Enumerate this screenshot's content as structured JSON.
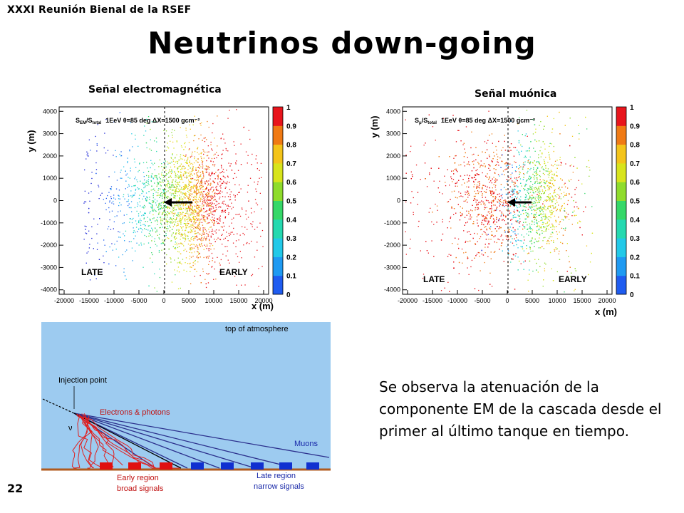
{
  "header": {
    "conference": "XXXI Reunión Bienal de la RSEF",
    "title": "Neutrinos down-going"
  },
  "plots": [
    {
      "id": "em",
      "title": "Señal electromagnética",
      "legend": "1EeV   θ=85 deg   ΔX=1500 gcm⁻²",
      "legend_prefix": "S",
      "legend_sub1": "EM",
      "legend_sub2": "total",
      "late": "LATE",
      "early": "EARLY",
      "xlabel": "x (m)",
      "ylabel": "y (m)"
    },
    {
      "id": "mu",
      "title": "Señal muónica",
      "legend": "1EeV   θ=85 deg   ΔX=1500 gcm⁻²",
      "legend_prefix": "S",
      "legend_sub1": "μ",
      "legend_sub2": "total",
      "late": "LATE",
      "early": "EARLY",
      "xlabel": "x (m)",
      "ylabel": "y (m)"
    }
  ],
  "axes": {
    "x_ticks": [
      "-20000",
      "-15000",
      "-10000",
      "-5000",
      "0",
      "5000",
      "10000",
      "15000",
      "20000"
    ],
    "y_ticks": [
      "4000",
      "3000",
      "2000",
      "1000",
      "0",
      "-1000",
      "-2000",
      "-3000",
      "-4000"
    ],
    "colorbar_ticks": [
      "1",
      "0.9",
      "0.8",
      "0.7",
      "0.6",
      "0.5",
      "0.4",
      "0.3",
      "0.2",
      "0.1",
      "0"
    ]
  },
  "diagram": {
    "top_label": "top of atmosphere",
    "injection": "Injection point",
    "electrons": "Electrons & photons",
    "nu": "ν",
    "muons": "Muons",
    "early1": "Early region",
    "early2": "broad signals",
    "late1": "Late region",
    "late2": "narrow signals"
  },
  "observation": "Se observa la atenuación de la componente EM de la cascada desde el primer al último tanque en tiempo.",
  "slide_number": "22",
  "colors": {
    "sky": "#9dcbf0",
    "ground": "#b05a1e",
    "early_tank": "#e01010",
    "late_tank": "#1030d0",
    "muon_line": "#2b2f8c",
    "em_track": "#e02020",
    "label_red": "#c01010",
    "label_blue": "#1828a8"
  }
}
